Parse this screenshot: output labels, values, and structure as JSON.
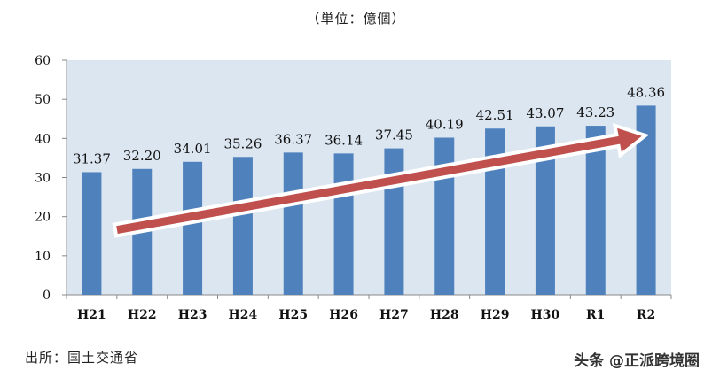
{
  "header": {
    "unit_label": "（単位：億個）"
  },
  "footer": {
    "source": "出所：国土交通省",
    "watermark": "头条 @正派跨境圈"
  },
  "colors": {
    "plot_background": "#dce6f1",
    "bar": "#4f81bd",
    "arrow": "#c0504d",
    "axis": "#888888"
  },
  "chart_data": {
    "type": "bar",
    "title": "",
    "unit": "億個",
    "xlabel": "",
    "ylabel": "",
    "categories": [
      "H21",
      "H22",
      "H23",
      "H24",
      "H25",
      "H26",
      "H27",
      "H28",
      "H29",
      "H30",
      "R1",
      "R2"
    ],
    "values": [
      31.37,
      32.2,
      34.01,
      35.26,
      36.37,
      36.14,
      37.45,
      40.19,
      42.51,
      43.07,
      43.23,
      48.36
    ],
    "value_labels": [
      "31.37",
      "32.20",
      "34.01",
      "35.26",
      "36.37",
      "36.14",
      "37.45",
      "40.19",
      "42.51",
      "43.07",
      "43.23",
      "48.36"
    ],
    "ylim": [
      0,
      60
    ],
    "yticks": [
      0,
      10,
      20,
      30,
      40,
      50,
      60
    ],
    "grid": false,
    "legend": null,
    "annotations": [
      {
        "type": "trend-arrow",
        "description": "Red upward-trend arrow from H21 to R2"
      }
    ]
  }
}
